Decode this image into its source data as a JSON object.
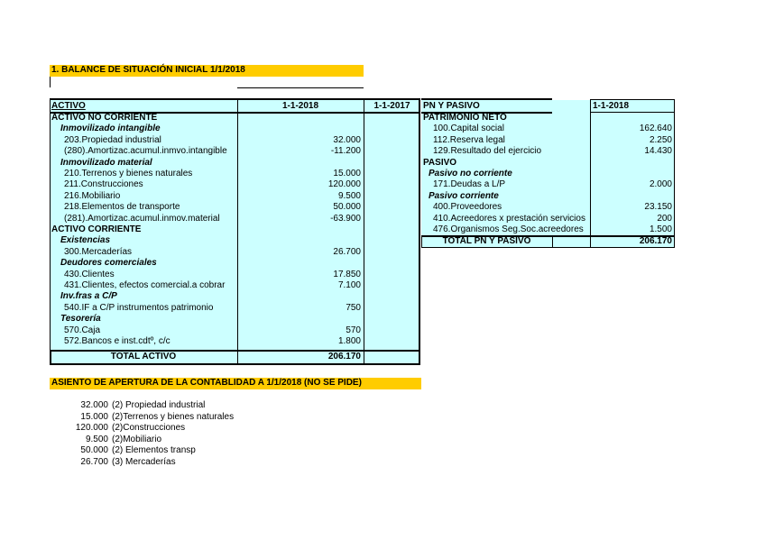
{
  "title": "1. BALANCE DE SITUACIÓN INICIAL 1/1/2018",
  "activo": {
    "header": "ACTIVO",
    "col1": "1-1-2018",
    "col2": "1-1-2017",
    "rows": [
      {
        "label": "ACTIVO NO CORRIENTE",
        "style": "b",
        "indent": 0,
        "value": ""
      },
      {
        "label": "Inmovilizado intangible",
        "style": "bi",
        "indent": 1,
        "value": ""
      },
      {
        "label": "203.Propiedad industrial",
        "style": "",
        "indent": 2,
        "value": "32.000"
      },
      {
        "label": "(280).Amortizac.acumul.inmvo.intangible",
        "style": "",
        "indent": 2,
        "value": "-11.200"
      },
      {
        "label": "Inmovilizado material",
        "style": "bi",
        "indent": 1,
        "value": ""
      },
      {
        "label": "210.Terrenos y bienes naturales",
        "style": "",
        "indent": 2,
        "value": "15.000"
      },
      {
        "label": "211.Construcciones",
        "style": "",
        "indent": 2,
        "value": "120.000"
      },
      {
        "label": "216.Mobiliario",
        "style": "",
        "indent": 2,
        "value": "9.500"
      },
      {
        "label": "218.Elementos de transporte",
        "style": "",
        "indent": 2,
        "value": "50.000"
      },
      {
        "label": "(281).Amortizac.acumul.inmov.material",
        "style": "",
        "indent": 2,
        "value": "-63.900"
      },
      {
        "label": "ACTIVO CORRIENTE",
        "style": "b",
        "indent": 0,
        "value": ""
      },
      {
        "label": "Existencias",
        "style": "bi",
        "indent": 1,
        "value": ""
      },
      {
        "label": "300.Mercaderías",
        "style": "",
        "indent": 2,
        "value": "26.700"
      },
      {
        "label": "Deudores comerciales",
        "style": "bi",
        "indent": 1,
        "value": ""
      },
      {
        "label": "430.Clientes",
        "style": "",
        "indent": 2,
        "value": "17.850"
      },
      {
        "label": "431.Clientes, efectos comercial.a cobrar",
        "style": "",
        "indent": 2,
        "value": "7.100"
      },
      {
        "label": "Inv.fras a C/P",
        "style": "bi",
        "indent": 1,
        "value": ""
      },
      {
        "label": "540.IF a C/P  instrumentos patrimonio",
        "style": "",
        "indent": 2,
        "value": "750"
      },
      {
        "label": "Tesorería",
        "style": "bi",
        "indent": 1,
        "value": ""
      },
      {
        "label": "570.Caja",
        "style": "",
        "indent": 2,
        "value": "570"
      },
      {
        "label": "572.Bancos e inst.cdtº, c/c",
        "style": "",
        "indent": 2,
        "value": "1.800"
      }
    ],
    "total_label": "TOTAL ACTIVO",
    "total_value": "206.170"
  },
  "pasivo": {
    "header": "PN Y PASIVO",
    "col1": "1-1-2018",
    "rows": [
      {
        "label": "PATRIMONIO NETO",
        "style": "b",
        "indent": 0,
        "value": ""
      },
      {
        "label": "100.Capital social",
        "style": "",
        "indent": 2,
        "value": "162.640"
      },
      {
        "label": "112.Reserva legal",
        "style": "",
        "indent": 2,
        "value": "2.250"
      },
      {
        "label": "129.Resultado del ejercicio",
        "style": "",
        "indent": 2,
        "value": "14.430"
      },
      {
        "label": "PASIVO",
        "style": "b",
        "indent": 0,
        "value": ""
      },
      {
        "label": "Pasivo no corriente",
        "style": "bi",
        "indent": 1,
        "value": ""
      },
      {
        "label": "171.Deudas a L/P",
        "style": "",
        "indent": 2,
        "value": "2.000"
      },
      {
        "label": "Pasivo corriente",
        "style": "bi",
        "indent": 1,
        "value": ""
      },
      {
        "label": "400.Proveedores",
        "style": "",
        "indent": 2,
        "value": "23.150"
      },
      {
        "label": "410.Acreedores x prestación servicios",
        "style": "",
        "indent": 2,
        "value": "200"
      },
      {
        "label": "476.Organismos Seg.Soc.acreedores",
        "style": "",
        "indent": 2,
        "value": "1.500"
      }
    ],
    "total_label": "TOTAL PN Y PASIVO",
    "total_value": "206.170"
  },
  "asiento": {
    "title": "ASIENTO DE APERTURA DE LA CONTABLIDAD A 1/1/2018 (NO SE PIDE)",
    "entries": [
      {
        "amount": "32.000",
        "account": "(2) Propiedad industrial"
      },
      {
        "amount": "15.000",
        "account": "(2)Terrenos y bienes naturales"
      },
      {
        "amount": "120.000",
        "account": "(2)Construcciones"
      },
      {
        "amount": "9.500",
        "account": "(2)Mobiliario"
      },
      {
        "amount": "50.000",
        "account": "(2) Elementos transp"
      },
      {
        "amount": "26.700",
        "account": "(3) Mercaderías"
      }
    ]
  },
  "colors": {
    "highlight": "#ffcc00",
    "table_bg": "#ccffff"
  }
}
